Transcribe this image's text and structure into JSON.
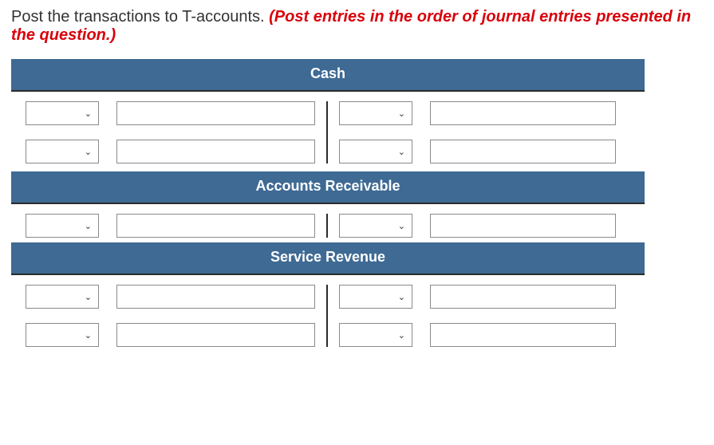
{
  "instruction": {
    "normal": "Post the transactions to T-accounts. ",
    "red": "(Post entries in the order of journal entries presented in the question.)"
  },
  "colors": {
    "header_bg": "#3e6a94",
    "header_text": "#ffffff",
    "divider": "#2b2b2b",
    "input_border": "#8a8a8a",
    "red_text": "#d9000a"
  },
  "accounts": [
    {
      "title": "Cash",
      "debit_rows": [
        {
          "dropdown": "",
          "amount": ""
        },
        {
          "dropdown": "",
          "amount": ""
        }
      ],
      "credit_rows": [
        {
          "dropdown": "",
          "amount": ""
        },
        {
          "dropdown": "",
          "amount": ""
        }
      ]
    },
    {
      "title": "Accounts Receivable",
      "debit_rows": [
        {
          "dropdown": "",
          "amount": ""
        }
      ],
      "credit_rows": [
        {
          "dropdown": "",
          "amount": ""
        }
      ]
    },
    {
      "title": "Service Revenue",
      "debit_rows": [
        {
          "dropdown": "",
          "amount": ""
        },
        {
          "dropdown": "",
          "amount": ""
        }
      ],
      "credit_rows": [
        {
          "dropdown": "",
          "amount": ""
        },
        {
          "dropdown": "",
          "amount": ""
        }
      ]
    }
  ]
}
